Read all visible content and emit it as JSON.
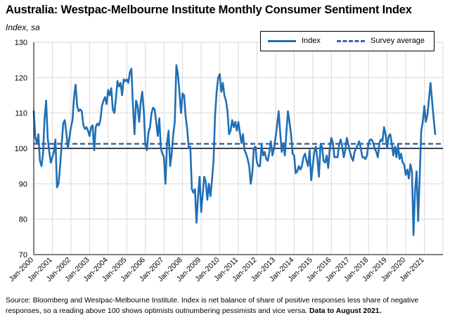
{
  "header": {
    "title": "Australia: Westpac-Melbourne Institute Monthly Consumer Sentiment Index",
    "subtitle": "Index, sa"
  },
  "legend": {
    "index_label": "Index",
    "average_label": "Survey average"
  },
  "footer": {
    "source_text": "Source: Bloomberg and Westpac-Melbourne Institute.  Index is net balance of share of positive responses less share of negative responses, so a reading above 100 shows optimists outnumbering pessimists and vice versa.",
    "data_note": "Data to August 2021."
  },
  "colors": {
    "series": "#1f6fb5",
    "average": "#3a66b0",
    "axis": "#000000",
    "grid": "#d9d9d9"
  },
  "chart_data": {
    "type": "line",
    "title": "Australia: Westpac-Melbourne Institute Monthly Consumer Sentiment Index",
    "ylabel": "Index, sa",
    "ylim": [
      70,
      130
    ],
    "yticks": [
      70,
      80,
      90,
      100,
      110,
      120,
      130
    ],
    "x_tick_labels": [
      "Jan-2000",
      "Jan-2001",
      "Jan-2002",
      "Jan-2003",
      "Jan-2004",
      "Jan-2005",
      "Jan-2006",
      "Jan-2007",
      "Jan-2008",
      "Jan-2009",
      "Jan-2010",
      "Jan-2011",
      "Jan-2012",
      "Jan-2013",
      "Jan-2014",
      "Jan-2015",
      "Jan-2016",
      "Jan-2017",
      "Jan-2018",
      "Jan-2019",
      "Jan-2020",
      "Jan-2021"
    ],
    "x_start": "2000-01",
    "x_end": "2021-08",
    "frequency": "monthly",
    "grid": true,
    "legend_position": "top-right",
    "reference_line": 100,
    "series": [
      {
        "name": "Index",
        "style": "solid",
        "values": [
          110.5,
          103.0,
          101.5,
          104.0,
          96.5,
          95.0,
          98.5,
          108.5,
          113.5,
          103.0,
          99.0,
          96.0,
          97.5,
          99.0,
          102.5,
          89.0,
          90.0,
          95.0,
          101.0,
          107.0,
          108.0,
          104.5,
          100.0,
          103.0,
          106.0,
          108.0,
          114.5,
          118.0,
          112.0,
          110.5,
          111.0,
          110.5,
          106.5,
          105.5,
          106.0,
          105.0,
          103.5,
          106.0,
          106.5,
          99.5,
          106.0,
          107.0,
          106.5,
          108.0,
          112.0,
          113.5,
          114.5,
          112.5,
          116.5,
          115.0,
          117.0,
          111.0,
          110.0,
          114.0,
          119.0,
          117.5,
          118.5,
          115.0,
          119.5,
          119.0,
          119.5,
          118.5,
          121.5,
          122.5,
          112.0,
          104.0,
          113.5,
          112.0,
          107.5,
          113.0,
          116.0,
          110.5,
          101.0,
          99.5,
          104.5,
          106.0,
          110.0,
          111.5,
          111.0,
          107.5,
          103.5,
          108.5,
          100.0,
          98.5,
          97.5,
          90.0,
          101.5,
          105.0,
          95.0,
          98.5,
          104.0,
          107.5,
          123.5,
          121.0,
          116.0,
          110.0,
          115.5,
          115.0,
          109.0,
          105.5,
          100.0,
          100.5,
          88.5,
          87.5,
          88.5,
          79.0,
          86.5,
          92.0,
          82.0,
          87.0,
          92.0,
          90.5,
          85.5,
          90.0,
          86.5,
          91.0,
          96.5,
          109.5,
          116.0,
          120.0,
          121.0,
          116.0,
          118.5,
          115.0,
          113.5,
          110.5,
          104.0,
          105.0,
          108.0,
          106.0,
          107.5,
          105.0,
          107.5,
          104.5,
          101.5,
          104.0,
          99.5,
          98.5,
          97.0,
          95.0,
          90.0,
          93.0,
          100.0,
          100.5,
          96.0,
          95.0,
          95.0,
          101.0,
          98.0,
          99.0,
          97.0,
          96.5,
          99.0,
          102.0,
          98.0,
          100.0,
          103.0,
          106.5,
          110.5,
          104.5,
          99.0,
          101.5,
          98.0,
          104.5,
          110.5,
          107.5,
          104.0,
          98.5,
          98.0,
          93.0,
          93.5,
          95.0,
          94.0,
          95.0,
          97.5,
          98.5,
          96.5,
          95.0,
          99.5,
          91.0,
          95.0,
          99.0,
          100.5,
          97.0,
          92.0,
          101.0,
          100.5,
          96.5,
          96.0,
          98.0,
          94.5,
          100.0,
          103.0,
          101.5,
          97.5,
          97.5,
          97.5,
          101.0,
          102.5,
          100.5,
          97.5,
          99.5,
          103.0,
          101.0,
          99.0,
          97.5,
          96.5,
          99.0,
          100.0,
          101.0,
          102.0,
          100.0,
          97.5,
          97.5,
          97.0,
          98.0,
          101.5,
          102.5,
          102.5,
          101.5,
          100.0,
          99.0,
          97.5,
          101.5,
          102.5,
          102.0,
          106.0,
          104.0,
          100.0,
          103.5,
          104.0,
          101.5,
          98.0,
          100.5,
          97.5,
          101.0,
          97.0,
          98.5,
          96.0,
          95.5,
          92.5,
          94.0,
          91.5,
          95.5,
          93.5,
          75.5,
          88.0,
          93.5,
          79.5,
          92.0,
          105.0,
          107.5,
          112.0,
          107.5,
          109.5,
          114.0,
          118.5,
          113.5,
          108.5,
          104.0
        ]
      },
      {
        "name": "Survey average",
        "style": "dashed",
        "values": [
          101.3
        ]
      }
    ]
  }
}
